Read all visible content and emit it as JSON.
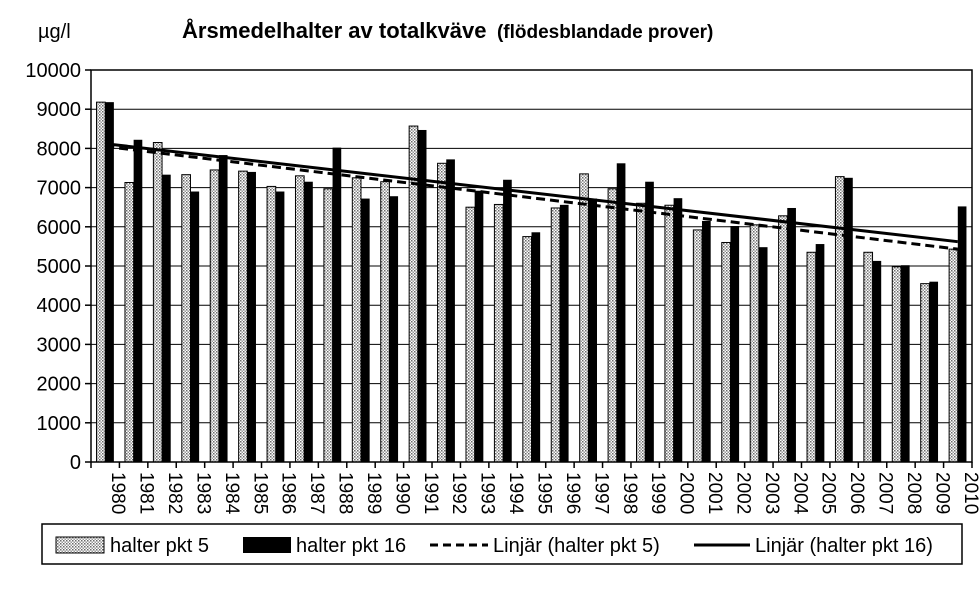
{
  "chart_data": {
    "type": "bar",
    "title": "Årsmedelhalter av totalkväve",
    "subtitle": "(flödesblandade prover)",
    "ylabel": "µg/l",
    "xlabel": "",
    "ylim": [
      0,
      10000
    ],
    "yticks": [
      0,
      1000,
      2000,
      3000,
      4000,
      5000,
      6000,
      7000,
      8000,
      9000,
      10000
    ],
    "grid": true,
    "legend_position": "bottom",
    "categories": [
      "1980",
      "1981",
      "1982",
      "1983",
      "1984",
      "1985",
      "1986",
      "1987",
      "1988",
      "1989",
      "1990",
      "1991",
      "1992",
      "1993",
      "1994",
      "1995",
      "1996",
      "1997",
      "1998",
      "1999",
      "2000",
      "2001",
      "2002",
      "2003",
      "2004",
      "2005",
      "2006",
      "2007",
      "2008",
      "2009",
      "2010"
    ],
    "series": [
      {
        "name": "halter pkt 5",
        "pattern": "dotted",
        "values": [
          9180,
          7130,
          8150,
          7330,
          7450,
          7420,
          7030,
          7300,
          6970,
          7250,
          7150,
          8570,
          7620,
          6500,
          6570,
          5750,
          6480,
          7350,
          6970,
          6600,
          6550,
          5920,
          5600,
          6050,
          6280,
          5350,
          7280,
          5350,
          4980,
          4550,
          5430
        ]
      },
      {
        "name": "halter pkt 16",
        "pattern": "solid",
        "values": [
          9180,
          8220,
          7330,
          6900,
          7830,
          7400,
          6900,
          7150,
          8020,
          6720,
          6780,
          8470,
          7720,
          6920,
          7200,
          5860,
          6560,
          6720,
          7620,
          7150,
          6730,
          6150,
          6020,
          5480,
          6480,
          5560,
          7250,
          5130,
          5020,
          4600,
          6520
        ]
      }
    ],
    "trendlines": [
      {
        "name": "Linjär (halter pkt 5)",
        "style": "dashed",
        "start": 8050,
        "end": 5430
      },
      {
        "name": "Linjär (halter pkt 16)",
        "style": "solid",
        "start": 8120,
        "end": 5620
      }
    ]
  }
}
